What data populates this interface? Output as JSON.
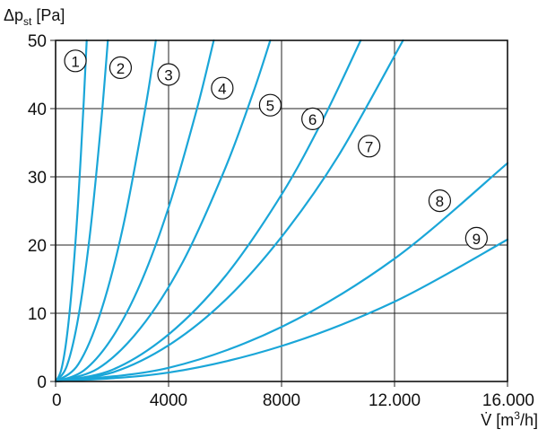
{
  "chart_data": {
    "type": "line",
    "ylabel": {
      "main": "Δp",
      "sub": "st",
      "unit": " [Pa]"
    },
    "xlabel": {
      "prefix": "V̇ [m",
      "sup": "3",
      "suffix": "/h]"
    },
    "xlim": [
      0,
      16000
    ],
    "ylim": [
      0,
      50
    ],
    "x_ticks": [
      {
        "value": 0,
        "label": "0"
      },
      {
        "value": 4000,
        "label": "4000"
      },
      {
        "value": 8000,
        "label": "8000"
      },
      {
        "value": 12000,
        "label": "12.000"
      },
      {
        "value": 16000,
        "label": "16.000"
      }
    ],
    "y_ticks": [
      {
        "value": 0,
        "label": "0"
      },
      {
        "value": 10,
        "label": "10"
      },
      {
        "value": 20,
        "label": "20"
      },
      {
        "value": 30,
        "label": "30"
      },
      {
        "value": 40,
        "label": "40"
      },
      {
        "value": 50,
        "label": "50"
      }
    ],
    "grid": true,
    "line_color": "#1aa6d8",
    "series": [
      {
        "label": "1",
        "x": [
          0,
          200,
          400,
          600,
          800,
          1000,
          1100
        ],
        "y": [
          0,
          1.7,
          6.6,
          14.9,
          26.4,
          41.3,
          50
        ]
      },
      {
        "label": "2",
        "x": [
          0,
          400,
          800,
          1200,
          1600,
          1850
        ],
        "y": [
          0,
          2.3,
          9.3,
          21.0,
          37.4,
          50
        ]
      },
      {
        "label": "3",
        "x": [
          0,
          800,
          1600,
          2400,
          3200,
          3550
        ],
        "y": [
          0,
          2.5,
          10.2,
          22.9,
          40.6,
          50
        ]
      },
      {
        "label": "4",
        "x": [
          0,
          1000,
          2000,
          3000,
          4000,
          5000,
          5600
        ],
        "y": [
          0,
          1.6,
          6.4,
          14.3,
          25.5,
          39.9,
          50
        ]
      },
      {
        "label": "5",
        "x": [
          0,
          1500,
          3000,
          4500,
          6000,
          7000,
          7600
        ],
        "y": [
          0,
          1.9,
          7.8,
          17.5,
          31.2,
          42.4,
          50
        ]
      },
      {
        "label": "6",
        "x": [
          0,
          2000,
          4000,
          6000,
          8000,
          9500,
          10800
        ],
        "y": [
          0,
          1.7,
          6.9,
          15.4,
          27.4,
          38.7,
          50
        ]
      },
      {
        "label": "7",
        "x": [
          0,
          2000,
          4000,
          6000,
          8000,
          10000,
          12300
        ],
        "y": [
          0,
          1.3,
          5.3,
          11.9,
          21.2,
          33.0,
          50
        ]
      },
      {
        "label": "8",
        "x": [
          0,
          4000,
          8000,
          12000,
          16000
        ],
        "y": [
          0,
          2.0,
          8.0,
          18.0,
          32.0
        ]
      },
      {
        "label": "9",
        "x": [
          0,
          4000,
          8000,
          12000,
          16000
        ],
        "y": [
          0,
          1.3,
          5.2,
          11.7,
          20.8
        ]
      }
    ],
    "markers": [
      {
        "label": "1",
        "x": 700,
        "y": 47
      },
      {
        "label": "2",
        "x": 2300,
        "y": 46
      },
      {
        "label": "3",
        "x": 4000,
        "y": 45
      },
      {
        "label": "4",
        "x": 5900,
        "y": 43
      },
      {
        "label": "5",
        "x": 7600,
        "y": 40.5
      },
      {
        "label": "6",
        "x": 9100,
        "y": 38.5
      },
      {
        "label": "7",
        "x": 11100,
        "y": 34.5
      },
      {
        "label": "8",
        "x": 13600,
        "y": 26.5
      },
      {
        "label": "9",
        "x": 14900,
        "y": 21
      }
    ]
  }
}
